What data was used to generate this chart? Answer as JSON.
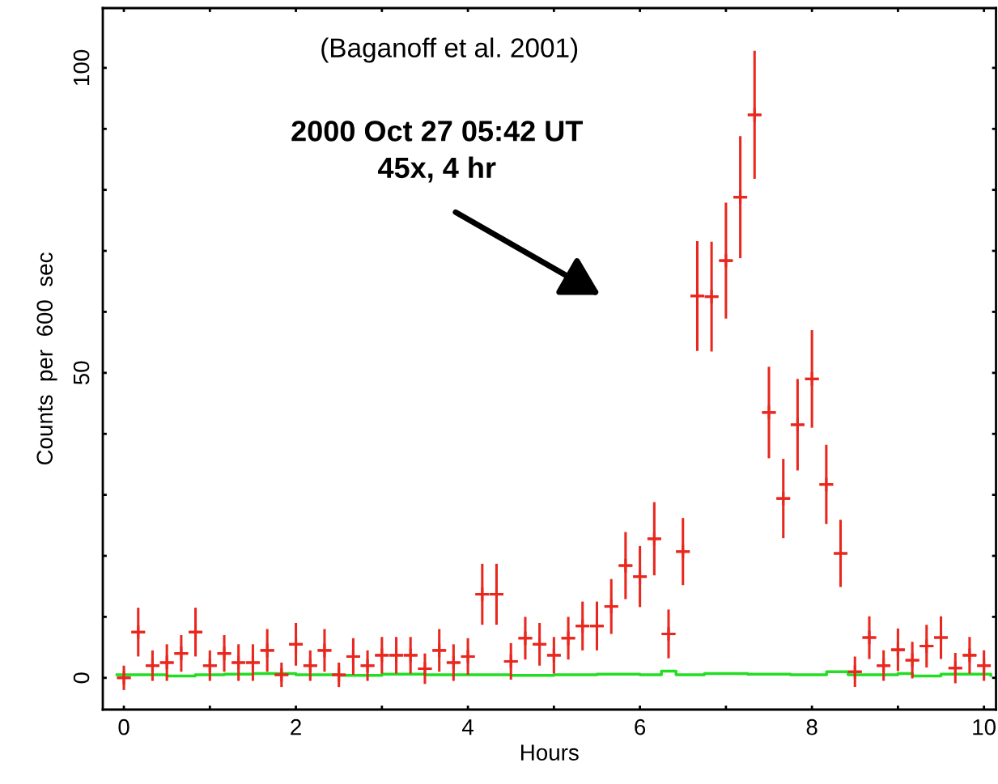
{
  "chart_data": {
    "type": "scatter",
    "xlabel": "Hours",
    "ylabel": "Counts  per  600  sec",
    "annotations": [
      "(Baganoff et al. 2001)",
      "2000 Oct 27 05:42 UT\n45x, 4 hr"
    ],
    "xlim": [
      -0.245,
      10.14
    ],
    "ylim": [
      -5.2,
      109.8
    ],
    "xticks": [
      0,
      {
        "value": 1,
        "label": null
      },
      2,
      {
        "value": 3,
        "label": null
      },
      4,
      {
        "value": 5,
        "label": null
      },
      6,
      {
        "value": 7,
        "label": null
      },
      8,
      {
        "value": 9,
        "label": null
      },
      10
    ],
    "yticks": [
      0,
      {
        "value": 10,
        "label": null
      },
      {
        "value": 20,
        "label": null
      },
      {
        "value": 30,
        "label": null
      },
      {
        "value": 40,
        "label": null
      },
      50,
      {
        "value": 60,
        "label": null
      },
      {
        "value": 70,
        "label": null
      },
      {
        "value": 80,
        "label": null
      },
      {
        "value": 90,
        "label": null
      },
      100
    ],
    "grid": false,
    "legend": false,
    "series": [
      {
        "color": "#e8281e",
        "marker": "cross",
        "x": [
          0,
          0.167,
          0.333,
          0.5,
          0.667,
          0.833,
          1.0,
          1.167,
          1.333,
          1.5,
          1.667,
          1.833,
          2.0,
          2.167,
          2.333,
          2.5,
          2.667,
          2.833,
          3.0,
          3.167,
          3.333,
          3.5,
          3.667,
          3.833,
          4.0,
          4.167,
          4.333,
          4.5,
          4.667,
          4.833,
          5.0,
          5.167,
          5.333,
          5.5,
          5.667,
          5.833,
          6.0,
          6.167,
          6.333,
          6.5,
          6.667,
          6.833,
          7.0,
          7.167,
          7.333,
          7.5,
          7.667,
          7.833,
          8.0,
          8.167,
          8.333,
          8.5,
          8.667,
          8.833,
          9.0,
          9.167,
          9.333,
          9.5,
          9.667,
          9.833,
          10.0
        ],
        "values": [
          0,
          7.5,
          2,
          2.5,
          4,
          7.5,
          2,
          4,
          2.5,
          2.5,
          4.5,
          0.5,
          5.5,
          2,
          4.5,
          0.5,
          3.5,
          2,
          3.7,
          3.7,
          3.7,
          1.5,
          4.5,
          2.5,
          3.5,
          13.7,
          13.7,
          2.7,
          6.5,
          5.5,
          3.7,
          6.5,
          8.5,
          8.5,
          11.7,
          18.4,
          16.6,
          22.8,
          7.2,
          20.7,
          62.6,
          62.5,
          68.4,
          78.8,
          92.3,
          43.5,
          29.4,
          41.5,
          49,
          31.7,
          20.4,
          1,
          6.6,
          2,
          4.6,
          2.9,
          5.2,
          6.6,
          1.6,
          3.7,
          2
        ],
        "errors": [
          2,
          4,
          2.5,
          3,
          3,
          4,
          2.5,
          3,
          3,
          3,
          3.5,
          2,
          3.5,
          2.5,
          3.5,
          2,
          3,
          2.5,
          3,
          3,
          3,
          2.5,
          3.5,
          3,
          3,
          5,
          5,
          3,
          3.5,
          3.5,
          3,
          3.5,
          4,
          4,
          4.5,
          5.5,
          5,
          6,
          4,
          5.5,
          9,
          9,
          9.5,
          10,
          10.5,
          7.5,
          6.5,
          7.5,
          8,
          6.5,
          5.5,
          2.5,
          3.5,
          2.5,
          3.5,
          3,
          3.5,
          3.5,
          2.5,
          3,
          2.5
        ],
        "xerrors": [
          0.08,
          0.08,
          0.08,
          0.08,
          0.08,
          0.08,
          0.08,
          0.08,
          0.08,
          0.08,
          0.08,
          0.08,
          0.08,
          0.08,
          0.08,
          0.08,
          0.08,
          0.08,
          0.08,
          0.08,
          0.08,
          0.08,
          0.08,
          0.08,
          0.08,
          0.08,
          0.08,
          0.08,
          0.08,
          0.08,
          0.08,
          0.08,
          0.08,
          0.08,
          0.08,
          0.08,
          0.08,
          0.08,
          0.08,
          0.08,
          0.08,
          0.08,
          0.08,
          0.08,
          0.08,
          0.08,
          0.08,
          0.08,
          0.08,
          0.08,
          0.08,
          0.08,
          0.08,
          0.08,
          0.08,
          0.08,
          0.08,
          0.08,
          0.08,
          0.08,
          0.08
        ]
      },
      {
        "type": "step",
        "color": "#22dd22",
        "x": [
          -0.08,
          0.5,
          0.83,
          1.17,
          1.5,
          2.0,
          2.5,
          3.0,
          3.5,
          4.0,
          4.5,
          5.0,
          5.5,
          6.0,
          6.25,
          6.42,
          6.75,
          7.25,
          7.75,
          8.17,
          8.42,
          9.0,
          9.17,
          9.5,
          10.08
        ],
        "values": [
          0.5,
          0.3,
          0.5,
          0.6,
          0.7,
          0.5,
          0.4,
          0.6,
          0.5,
          0.5,
          0.4,
          0.5,
          0.6,
          0.5,
          1.1,
          0.5,
          0.7,
          0.6,
          0.5,
          1.0,
          0.5,
          0.7,
          0.3,
          0.6,
          0.4
        ]
      }
    ]
  }
}
